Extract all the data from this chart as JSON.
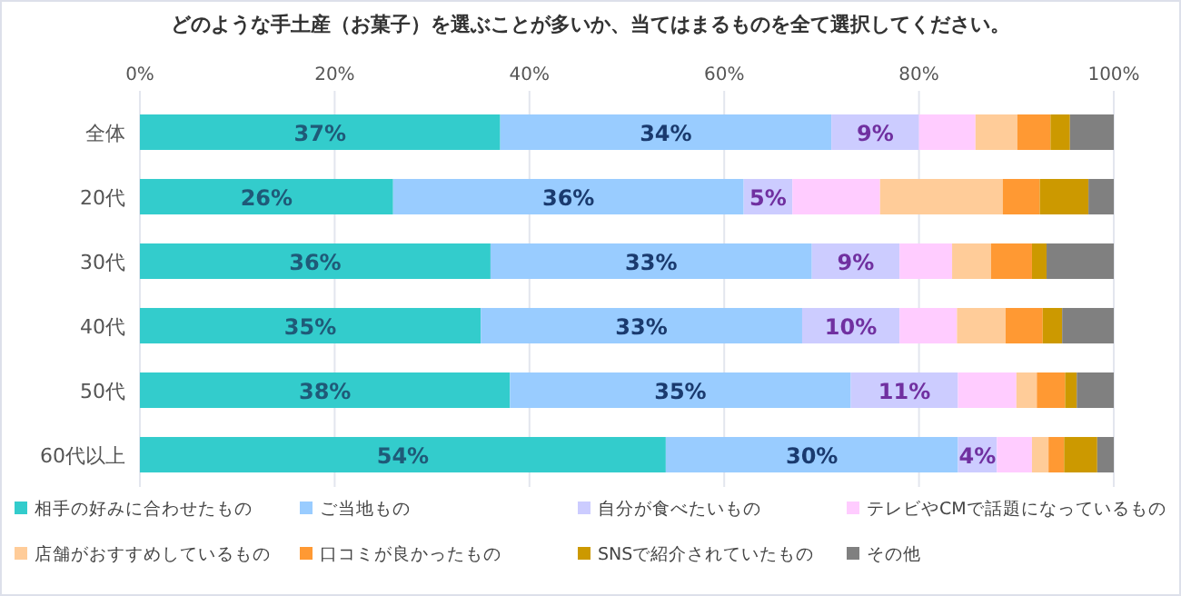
{
  "chart_data": {
    "type": "bar",
    "orientation": "horizontal",
    "stacked": true,
    "title": "どのような手土産（お菓子）を選ぶことが多いか、当てはまるものを全て選択してください。",
    "categories": [
      "全体",
      "20代",
      "30代",
      "40代",
      "50代",
      "60代以上"
    ],
    "xlim": [
      0,
      100
    ],
    "xticks": [
      {
        "value": 0,
        "label": "0%"
      },
      {
        "value": 20,
        "label": "20%"
      },
      {
        "value": 40,
        "label": "40%"
      },
      {
        "value": 60,
        "label": "60%"
      },
      {
        "value": 80,
        "label": "80%"
      },
      {
        "value": 100,
        "label": "100%"
      }
    ],
    "grid": "x",
    "legend": "bottom",
    "series": [
      {
        "name": "相手の好みに合わせたもの",
        "color": "#33cccc",
        "values": [
          37,
          26,
          36,
          35,
          38,
          54
        ],
        "value_labels": [
          "37%",
          "26%",
          "36%",
          "35%",
          "38%",
          "54%"
        ]
      },
      {
        "name": "ご当地もの",
        "color": "#99ccff",
        "values": [
          34,
          36,
          33,
          33,
          35,
          30
        ],
        "value_labels": [
          "34%",
          "36%",
          "33%",
          "33%",
          "35%",
          "30%"
        ]
      },
      {
        "name": "自分が食べたいもの",
        "color": "#ccccff",
        "values": [
          9,
          5,
          9,
          10,
          11,
          4
        ],
        "value_labels": [
          "9%",
          "5%",
          "9%",
          "10%",
          "11%",
          "4%"
        ]
      },
      {
        "name": "テレビやCMで話題になっているもの",
        "color": "#ffccff",
        "values": [
          5.8,
          9.0,
          5.4,
          5.9,
          6.0,
          3.6
        ]
      },
      {
        "name": "店舗がおすすめしているもの",
        "color": "#ffcc99",
        "values": [
          4.3,
          12.6,
          4.0,
          5.0,
          2.1,
          1.7
        ]
      },
      {
        "name": "口コミが良かったもの",
        "color": "#ff9933",
        "values": [
          3.4,
          3.8,
          4.2,
          3.8,
          2.9,
          1.6
        ]
      },
      {
        "name": "SNSで紹介されていたもの",
        "color": "#cc9900",
        "values": [
          2.0,
          5.0,
          1.5,
          2.0,
          1.2,
          3.4
        ]
      },
      {
        "name": "その他",
        "color": "#808080",
        "values": [
          4.5,
          2.6,
          6.9,
          5.3,
          3.8,
          1.7
        ]
      }
    ]
  }
}
